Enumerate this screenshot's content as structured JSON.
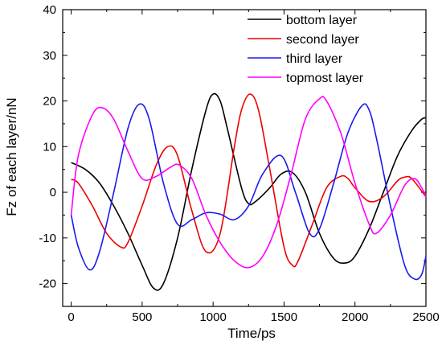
{
  "chart_data": {
    "type": "line",
    "title": "",
    "xlabel": "Time/ps",
    "ylabel": "Fz of each layer/nN",
    "xlim": [
      -60,
      2500
    ],
    "ylim": [
      -25,
      40
    ],
    "xticks": [
      0,
      500,
      1000,
      1500,
      2000,
      2500
    ],
    "yticks": [
      -20,
      -10,
      0,
      10,
      20,
      30,
      40
    ],
    "grid": false,
    "legend": "top-right",
    "series": [
      {
        "name": "bottom layer",
        "color": "#000000",
        "x": [
          0,
          100,
          200,
          300,
          400,
          500,
          580,
          650,
          750,
          850,
          950,
          1000,
          1050,
          1100,
          1200,
          1250,
          1300,
          1400,
          1480,
          1560,
          1650,
          1750,
          1850,
          1930,
          2000,
          2100,
          2200,
          2300,
          2400,
          2470,
          2500
        ],
        "y": [
          6.5,
          5,
          2,
          -3,
          -9,
          -16,
          -21,
          -20,
          -10,
          5,
          18,
          21.5,
          20,
          14,
          1,
          -2.5,
          -2,
          1,
          4,
          4.3,
          0,
          -9,
          -14.5,
          -15.5,
          -14,
          -8,
          0,
          8,
          13.5,
          16,
          16.3
        ]
      },
      {
        "name": "second layer",
        "color": "#ee0000",
        "x": [
          0,
          50,
          150,
          250,
          350,
          400,
          500,
          600,
          680,
          750,
          850,
          950,
          1050,
          1150,
          1200,
          1260,
          1320,
          1400,
          1500,
          1560,
          1600,
          1700,
          1800,
          1900,
          1950,
          2000,
          2100,
          2200,
          2300,
          2350,
          2400,
          2500
        ],
        "y": [
          2.8,
          2,
          -3,
          -9,
          -12,
          -11,
          -3,
          6,
          10,
          8,
          -4,
          -13,
          -9,
          10,
          18,
          21.5,
          18,
          5,
          -12,
          -16,
          -15,
          -7,
          1,
          3.5,
          3,
          1,
          -2,
          -1,
          2.5,
          3.3,
          3,
          -1
        ]
      },
      {
        "name": "third layer",
        "color": "#1a1aee",
        "x": [
          0,
          50,
          130,
          200,
          300,
          400,
          480,
          550,
          650,
          750,
          850,
          950,
          1050,
          1150,
          1250,
          1350,
          1480,
          1580,
          1680,
          1750,
          1850,
          1950,
          2050,
          2100,
          2150,
          2250,
          2350,
          2420,
          2470,
          2500
        ],
        "y": [
          -5,
          -12,
          -17,
          -13,
          0,
          14,
          19.3,
          16,
          2,
          -7,
          -6,
          -4.5,
          -4.8,
          -6,
          -3,
          4,
          8,
          0,
          -9,
          -8,
          2,
          13,
          19,
          18,
          12,
          -3,
          -16,
          -19,
          -18,
          -14
        ]
      },
      {
        "name": "topmost layer",
        "color": "#ff00ff",
        "x": [
          0,
          50,
          150,
          220,
          300,
          400,
          500,
          600,
          700,
          760,
          850,
          950,
          1050,
          1150,
          1250,
          1350,
          1450,
          1550,
          1650,
          1750,
          1800,
          1900,
          2000,
          2100,
          2150,
          2250,
          2350,
          2420,
          2470,
          2500
        ],
        "y": [
          -5,
          8,
          17,
          18.5,
          16,
          9,
          3,
          3.5,
          5.5,
          6,
          3,
          -5,
          -11,
          -15,
          -16.5,
          -14,
          -7,
          4,
          16,
          20.5,
          20,
          13,
          2,
          -7,
          -9,
          -5,
          1.5,
          3,
          1,
          -1
        ]
      }
    ]
  }
}
